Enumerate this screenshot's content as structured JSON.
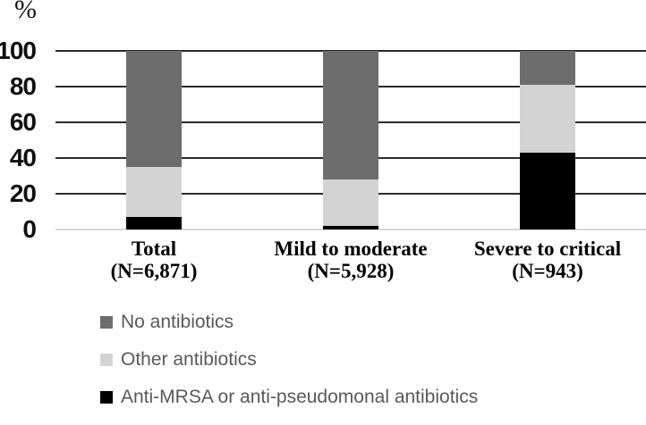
{
  "chart_data": {
    "type": "bar",
    "stacked": true,
    "title": "",
    "unit_label": "%",
    "xlabel": "",
    "ylabel": "%",
    "ylim": [
      0,
      100
    ],
    "y_ticks": [
      0,
      20,
      40,
      60,
      80,
      100
    ],
    "grid": true,
    "legend_position": "bottom-left",
    "categories": [
      {
        "name": "Total",
        "n_label": "(N=6,871)"
      },
      {
        "name": "Mild to moderate",
        "n_label": "(N=5,928)"
      },
      {
        "name": "Severe to critical",
        "n_label": "(N=943)"
      }
    ],
    "series": [
      {
        "name": "Anti-MRSA or anti-pseudomonal antibiotics",
        "color": "#000000",
        "values": [
          7,
          2,
          43
        ]
      },
      {
        "name": "Other antibiotics",
        "color": "#d3d3d3",
        "values": [
          28,
          26,
          38
        ]
      },
      {
        "name": "No antibiotics",
        "color": "#6d6d6d",
        "values": [
          65,
          72,
          19
        ]
      }
    ],
    "legend": [
      {
        "label": "No antibiotics",
        "color": "#6d6d6d"
      },
      {
        "label": "Other antibiotics",
        "color": "#d3d3d3"
      },
      {
        "label": "Anti-MRSA or anti-pseudomonal antibiotics",
        "color": "#000000"
      }
    ]
  },
  "style": {
    "gridline_color": "#2b2b2b",
    "baseline_color": "#d9d9d9",
    "axis_text_color": "#0f0f0f",
    "category_text_color": "#000000",
    "legend_text_color": "#595959",
    "background": "#ffffff"
  }
}
